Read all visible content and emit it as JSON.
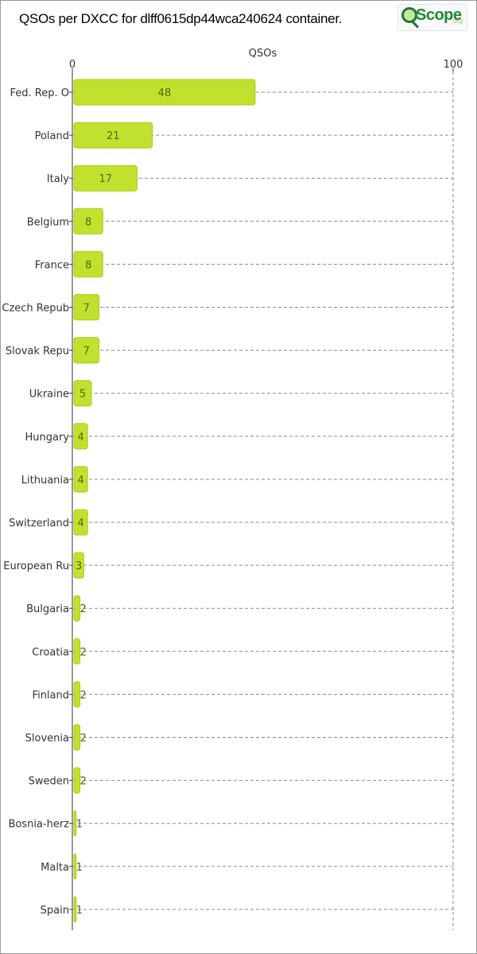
{
  "title": "QSOs per DXCC for dlff0615dp44wca240624 container.",
  "logo": {
    "brand": "Scope",
    "suffix": ".org"
  },
  "colors": {
    "bar": "#c0e22e",
    "bar_stroke": "#a9cc1c",
    "grid": "#8a8a8a",
    "axis": "#333333"
  },
  "chart_data": {
    "type": "bar",
    "orientation": "horizontal",
    "xlabel": "QSOs",
    "xlim": [
      0,
      100
    ],
    "xticks": [
      0,
      100
    ],
    "grid": true,
    "categories": [
      "Fed. Rep. O",
      "Poland",
      "Italy",
      "Belgium",
      "France",
      "Czech Repub",
      "Slovak Repu",
      "Ukraine",
      "Hungary",
      "Lithuania",
      "Switzerland",
      "European Ru",
      "Bulgaria",
      "Croatia",
      "Finland",
      "Slovenia",
      "Sweden",
      "Bosnia-herz",
      "Malta",
      "Spain"
    ],
    "values": [
      48,
      21,
      17,
      8,
      8,
      7,
      7,
      5,
      4,
      4,
      4,
      3,
      2,
      2,
      2,
      2,
      2,
      1,
      1,
      1
    ]
  }
}
